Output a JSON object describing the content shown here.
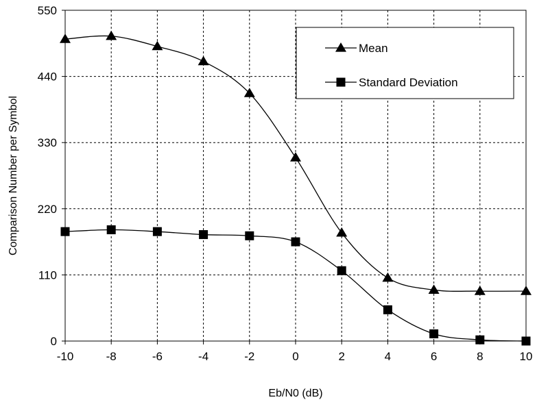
{
  "chart_data": {
    "type": "line",
    "xlabel": "Eb/N0 (dB)",
    "ylabel": "Comparison Number per Symbol",
    "xlim": [
      -10,
      10
    ],
    "ylim": [
      0,
      550
    ],
    "x_ticks": [
      -10,
      -8,
      -6,
      -4,
      -2,
      0,
      2,
      4,
      6,
      8,
      10
    ],
    "y_ticks": [
      0,
      110,
      220,
      330,
      440,
      550
    ],
    "x_tick_labels": [
      "-10",
      "-8",
      "-6",
      "-4",
      "-2",
      "0",
      "2",
      "4",
      "6",
      "8",
      "10"
    ],
    "y_tick_labels": [
      "0",
      "110",
      "220",
      "330",
      "440",
      "550"
    ],
    "grid": true,
    "legend_position": "top-right",
    "x": [
      -10,
      -8,
      -6,
      -4,
      -2,
      0,
      2,
      4,
      6,
      8,
      10
    ],
    "series": [
      {
        "name": "Mean",
        "marker": "triangle",
        "values": [
          502,
          507,
          490,
          465,
          412,
          305,
          180,
          105,
          85,
          83,
          83
        ]
      },
      {
        "name": "Standard Deviation",
        "marker": "square",
        "values": [
          182,
          185,
          182,
          177,
          175,
          165,
          117,
          52,
          12,
          2,
          0
        ]
      }
    ],
    "colors": {
      "line": "#000000",
      "background": "#ffffff"
    }
  }
}
